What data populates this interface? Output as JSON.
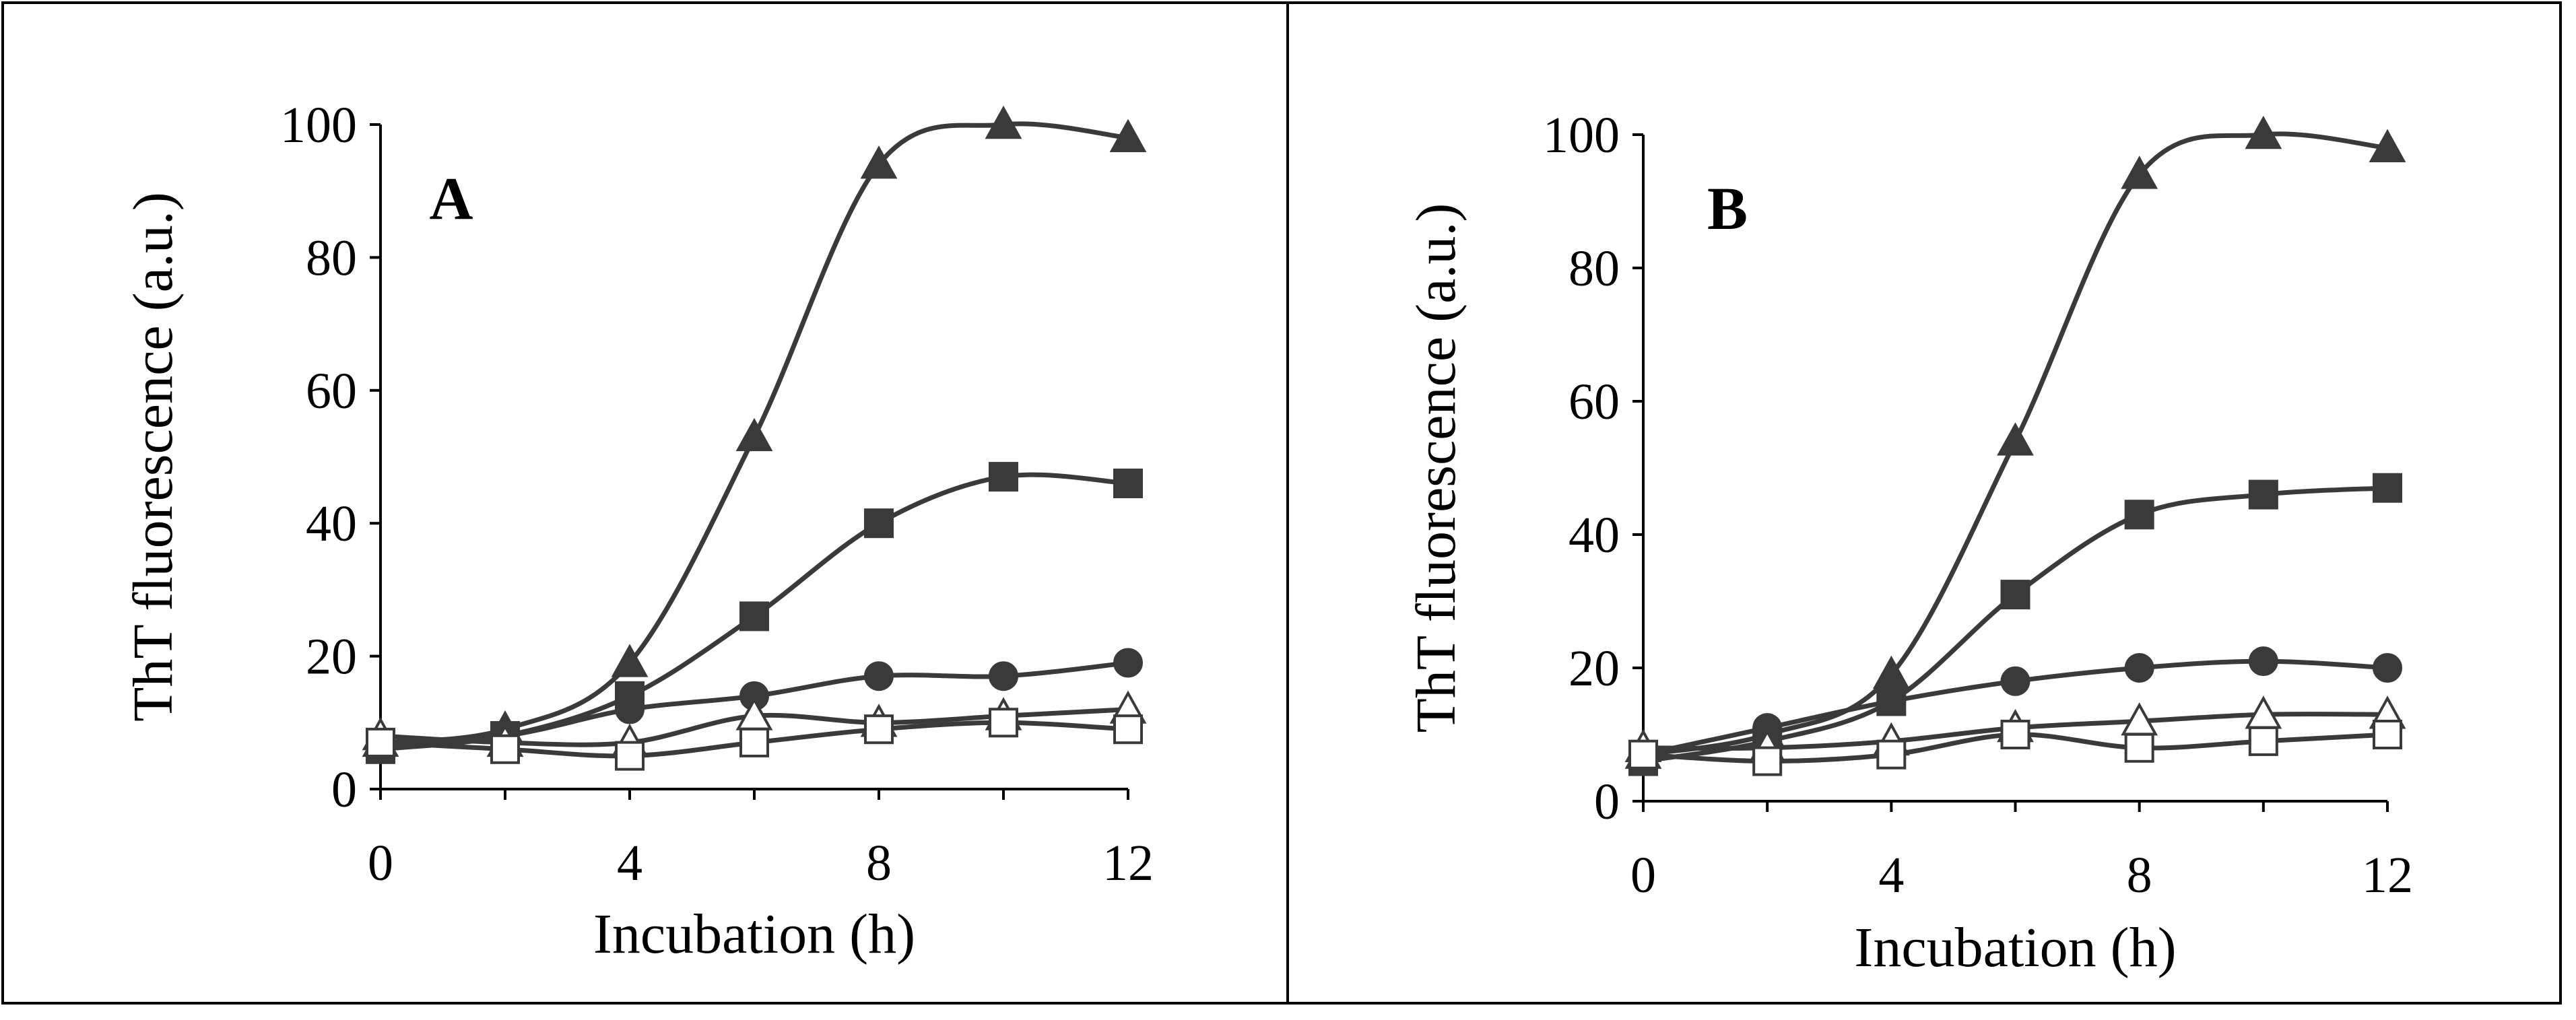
{
  "chart_data": [
    {
      "type": "line",
      "panel_label": "A",
      "xlabel": "Incubation (h)",
      "ylabel": "ThT fluorescence (a.u.)",
      "xlim": [
        0,
        12
      ],
      "ylim": [
        0,
        100
      ],
      "xticks": [
        0,
        4,
        8,
        12
      ],
      "yticks": [
        0,
        20,
        40,
        60,
        80,
        100
      ],
      "x": [
        0,
        2,
        4,
        6,
        8,
        10,
        12
      ],
      "series": [
        {
          "name": "filled triangle",
          "marker": "triangle",
          "filled": true,
          "values": [
            7,
            9,
            19,
            53,
            94,
            100,
            98
          ]
        },
        {
          "name": "filled square",
          "marker": "square",
          "filled": true,
          "values": [
            6,
            8,
            14,
            26,
            40,
            47,
            46
          ]
        },
        {
          "name": "filled circle",
          "marker": "circle",
          "filled": true,
          "values": [
            7,
            8,
            12,
            14,
            17,
            17,
            19
          ]
        },
        {
          "name": "open triangle",
          "marker": "triangle",
          "filled": false,
          "values": [
            8,
            7,
            7,
            11,
            10,
            11,
            12
          ]
        },
        {
          "name": "open square",
          "marker": "square",
          "filled": false,
          "values": [
            7,
            6,
            5,
            7,
            9,
            10,
            9
          ]
        }
      ]
    },
    {
      "type": "line",
      "panel_label": "B",
      "xlabel": "Incubation (h)",
      "ylabel": "ThT fluorescence (a.u.)",
      "xlim": [
        0,
        12
      ],
      "ylim": [
        0,
        100
      ],
      "xticks": [
        0,
        4,
        8,
        12
      ],
      "yticks": [
        0,
        20,
        40,
        60,
        80,
        100
      ],
      "x": [
        0,
        2,
        4,
        6,
        8,
        10,
        12
      ],
      "series": [
        {
          "name": "filled triangle",
          "marker": "triangle",
          "filled": true,
          "values": [
            7,
            10,
            19,
            54,
            94,
            100,
            98
          ]
        },
        {
          "name": "filled square",
          "marker": "square",
          "filled": true,
          "values": [
            6,
            9,
            15,
            31,
            43,
            46,
            47
          ]
        },
        {
          "name": "filled circle",
          "marker": "circle",
          "filled": true,
          "values": [
            7,
            11,
            15,
            18,
            20,
            21,
            20
          ]
        },
        {
          "name": "open triangle",
          "marker": "triangle",
          "filled": false,
          "values": [
            8,
            8,
            9,
            11,
            12,
            13,
            13
          ]
        },
        {
          "name": "open square",
          "marker": "square",
          "filled": false,
          "values": [
            7,
            6,
            7,
            10,
            8,
            9,
            10
          ]
        }
      ]
    }
  ],
  "colors": {
    "series_stroke": "#3a3a3a",
    "filled_marker": "#3a3a3a",
    "open_marker": "#ffffff"
  }
}
